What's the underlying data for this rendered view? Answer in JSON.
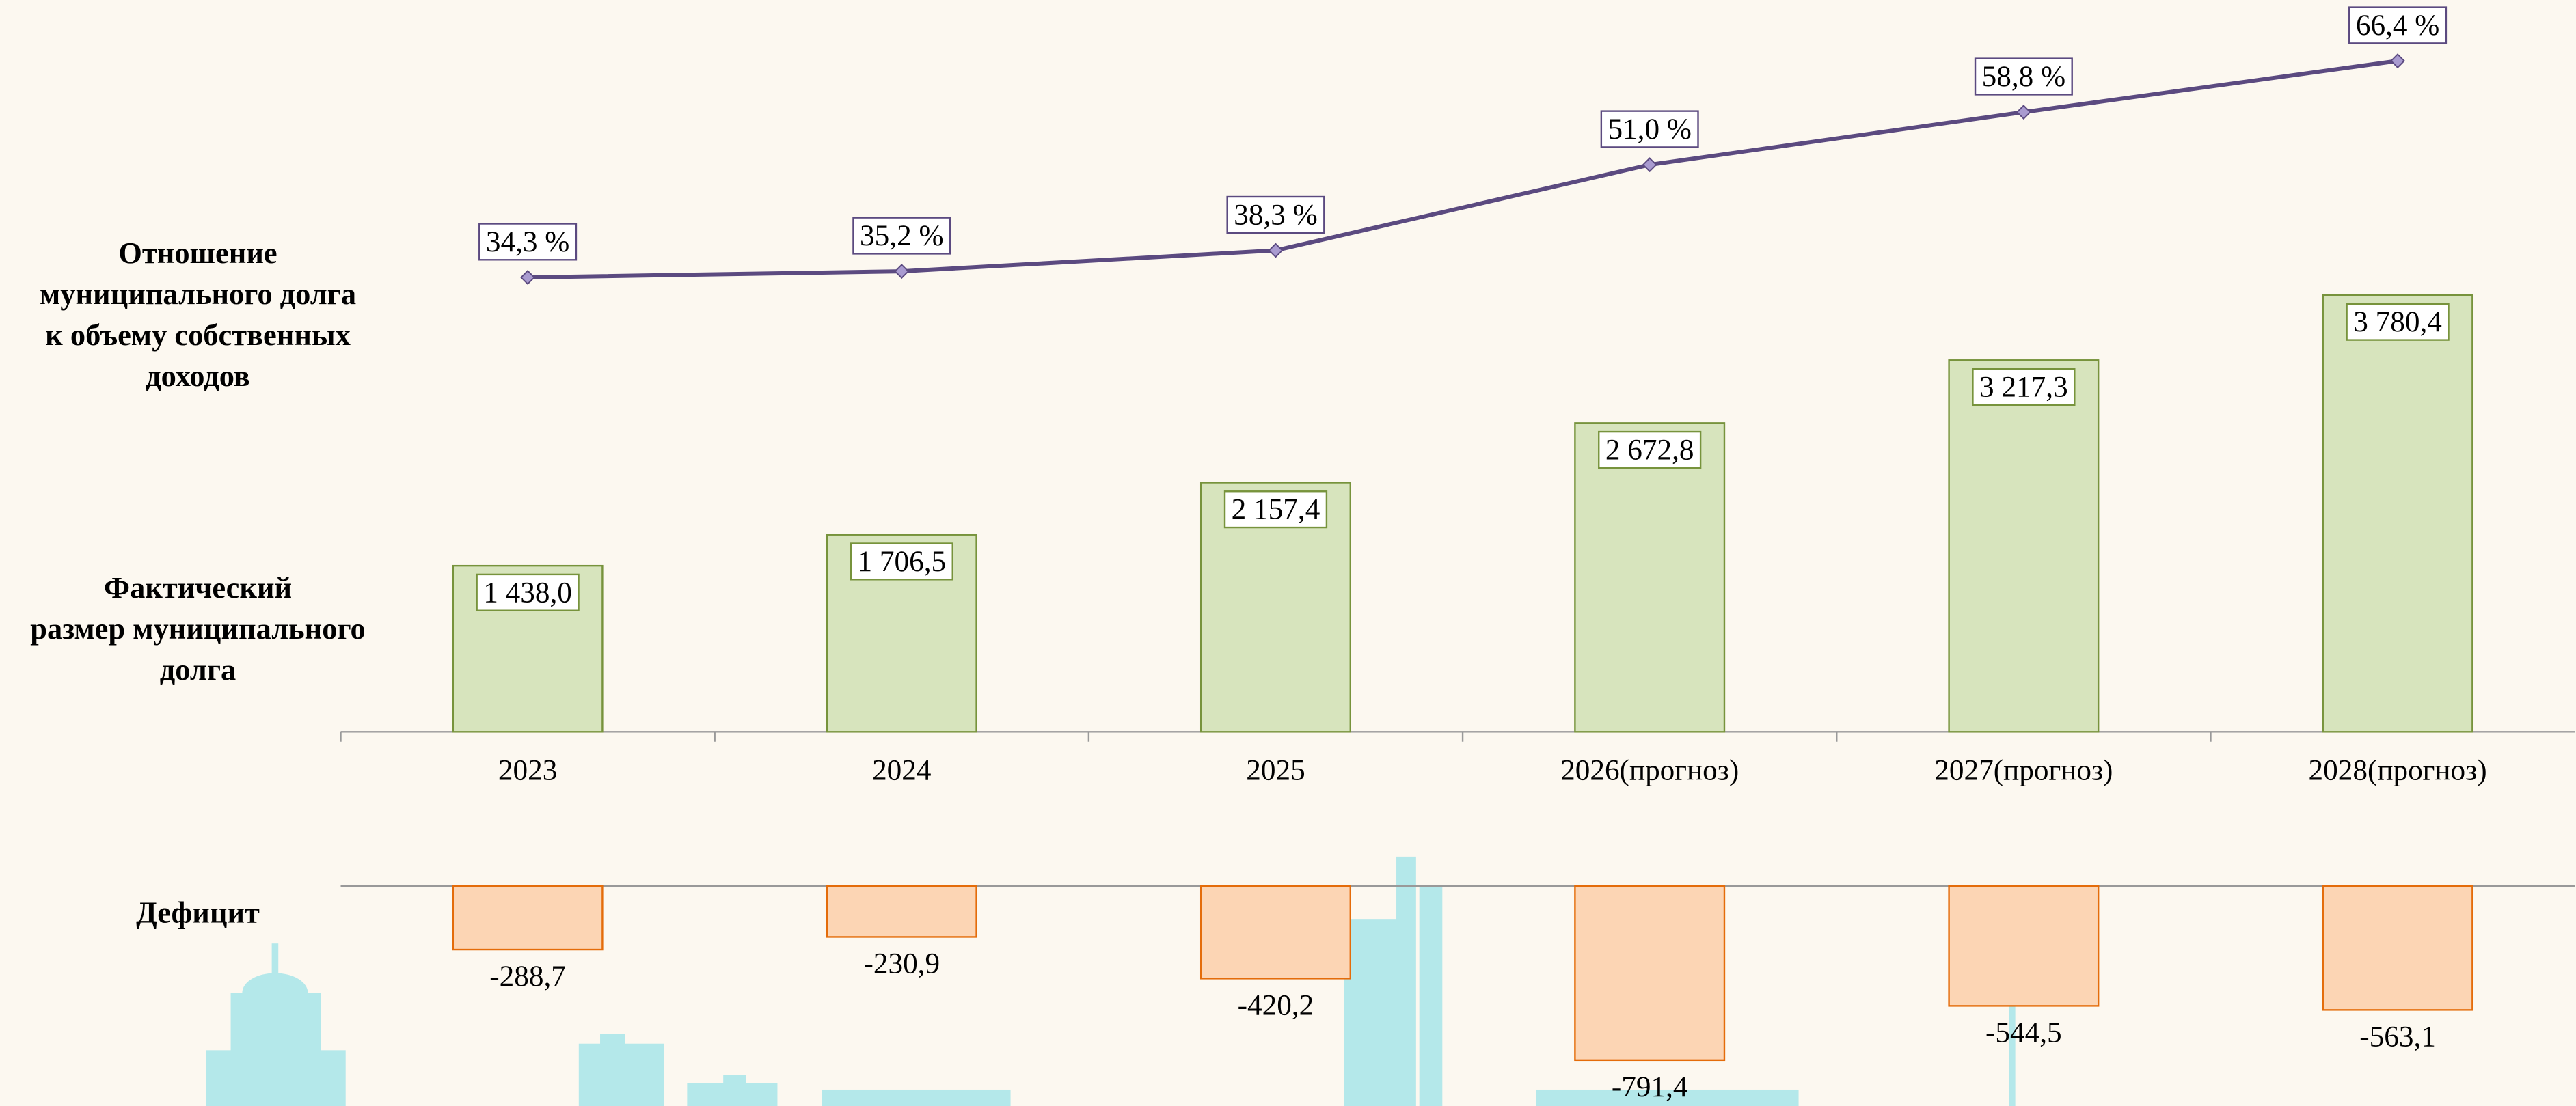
{
  "chart_data": [
    {
      "type": "line",
      "title": [
        "Отношение",
        "муниципального долга",
        "к объему собственных",
        "доходов"
      ],
      "values": [
        34.3,
        35.2,
        38.3,
        51.0,
        58.8,
        66.4
      ],
      "value_labels": [
        "34,3 %",
        "35,2 %",
        "38,3 %",
        "51,0 %",
        "58,8 %",
        "66,4 %"
      ],
      "color": "#5b4a80",
      "marker_color": "#a99bd0"
    },
    {
      "type": "bar",
      "title": [
        "Фактический",
        "размер муниципального",
        "долга"
      ],
      "categories": [
        "2023",
        "2024",
        "2025",
        "2026(прогноз)",
        "2027(прогноз)",
        "2028(прогноз)"
      ],
      "values": [
        1438.0,
        1706.5,
        2157.4,
        2672.8,
        3217.3,
        3780.4
      ],
      "value_labels": [
        "1 438,0",
        "1 706,5",
        "2 157,4",
        "2 672,8",
        "3 217,3",
        "3 780,4"
      ],
      "color": "#d7e4bd",
      "edge_color": "#77933c"
    },
    {
      "type": "bar",
      "title": [
        "Дефицит"
      ],
      "values": [
        -288.7,
        -230.9,
        -420.2,
        -791.4,
        -544.5,
        -563.1
      ],
      "value_labels": [
        "-288,7",
        "-230,9",
        "-420,2",
        "-791,4",
        "-544,5",
        "-563,1"
      ],
      "color": "#fcd5b4",
      "edge_color": "#e46c0a"
    }
  ]
}
